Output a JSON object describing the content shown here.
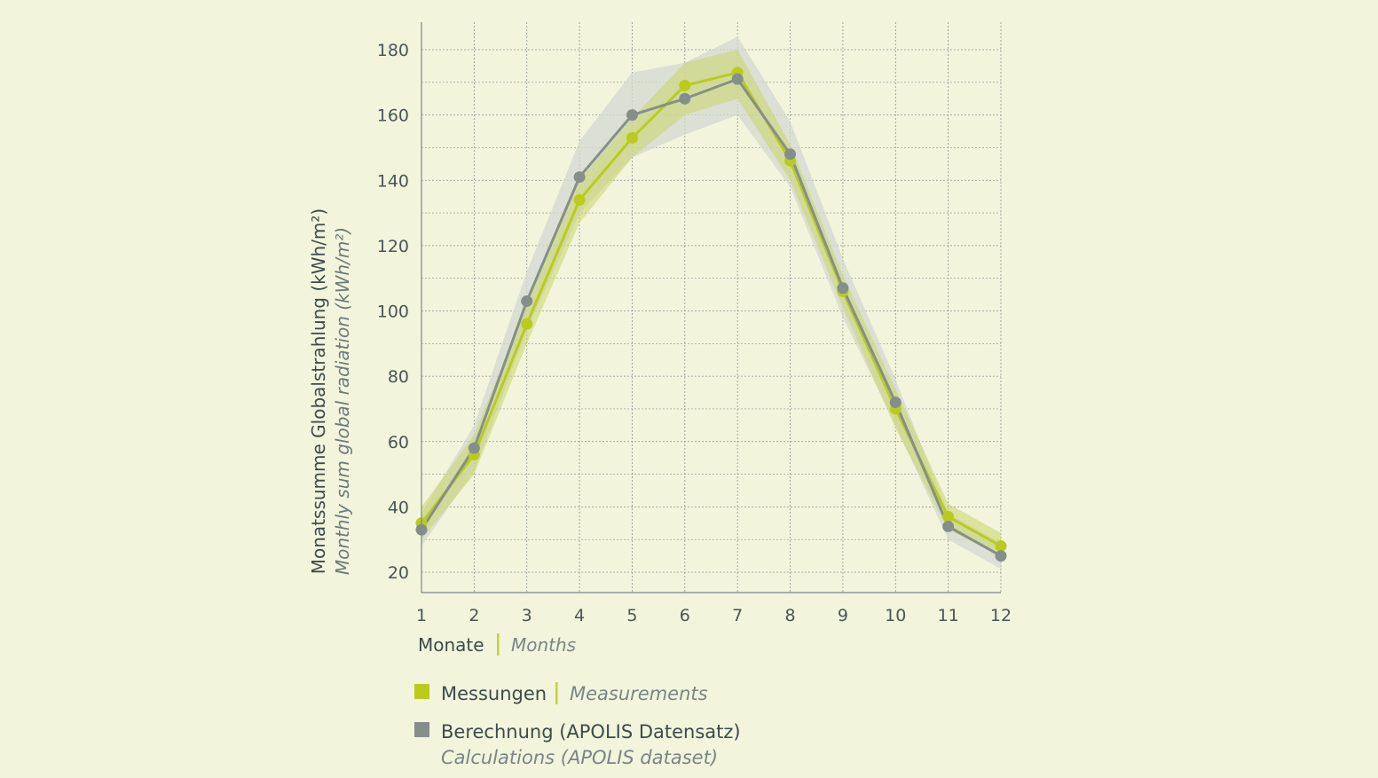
{
  "chart_data": {
    "type": "line",
    "x": [
      1,
      2,
      3,
      4,
      5,
      6,
      7,
      8,
      9,
      10,
      11,
      12
    ],
    "xlim": [
      1,
      12
    ],
    "ylim": [
      15,
      184
    ],
    "yticks": [
      20,
      40,
      60,
      80,
      100,
      120,
      140,
      160,
      180
    ],
    "grid": true,
    "ylabel": "Monatssumme Globalstrahlung (kWh/m²)",
    "ylabel_en": "Monthly sum global radiation (kWh/m²)",
    "xlabel": "Monate",
    "xlabel_en": "Months",
    "legend_placement": "bottom",
    "series": [
      {
        "name": "Messungen",
        "name_en": "Measurements",
        "color": "#b9cc1e",
        "band_color": "#c9d66a",
        "values": [
          35,
          56,
          96,
          134,
          153,
          169,
          173,
          146,
          106,
          70,
          37,
          28
        ],
        "band_lower": [
          30,
          50,
          90,
          127,
          147,
          160,
          165,
          140,
          101,
          64,
          33,
          25
        ],
        "band_upper": [
          40,
          62,
          102,
          140,
          159,
          176,
          180,
          151,
          111,
          76,
          41,
          32
        ]
      },
      {
        "name": "Berechnung (APOLIS Datensatz)",
        "name_en": "Calculations (APOLIS dataset)",
        "color": "#868e8c",
        "band_color": "#d4d8d0",
        "values": [
          33,
          58,
          103,
          141,
          160,
          165,
          171,
          148,
          107,
          72,
          34,
          25
        ],
        "band_lower": [
          28,
          51,
          94,
          130,
          147,
          154,
          160,
          138,
          98,
          65,
          30,
          21
        ],
        "band_upper": [
          38,
          65,
          112,
          152,
          173,
          176,
          184,
          158,
          116,
          79,
          38,
          29
        ]
      }
    ]
  }
}
